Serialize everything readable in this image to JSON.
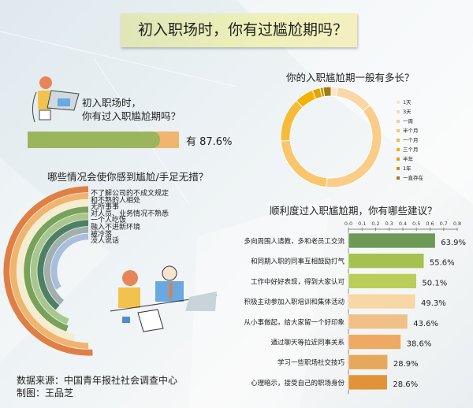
{
  "header": {
    "title": "初入职场时，你有过尴尬期吗？"
  },
  "question1": {
    "line1": "初入职场时，",
    "line2": "你有过入职尴尬期吗？",
    "answer_label": "有 87.6%",
    "value_percent": 87.6,
    "colors": {
      "fill": "#9bb55c",
      "rest": "#f0b56e"
    }
  },
  "chart_data": [
    {
      "type": "pie",
      "variant": "donut",
      "title": "你的入职尴尬期一般有多长？",
      "categories": [
        "1天",
        "3天",
        "一周",
        "半个月",
        "一个月",
        "三个月",
        "半年",
        "1年",
        "一直存在"
      ],
      "values": [
        2,
        12,
        37,
        22,
        14,
        6,
        2.5,
        1,
        2.5
      ],
      "colors": [
        "#fbe6cc",
        "#fad7a6",
        "#f9cd88",
        "#f9c66e",
        "#f7bb3a",
        "#f4b100",
        "#e0a400",
        "#c99400",
        "#a57a10"
      ],
      "legend": "right"
    },
    {
      "type": "bar",
      "variant": "radial",
      "title": "哪些情况会使你感到尴尬/手足无措？",
      "categories": [
        "不了解公司的不成文规定",
        "和不熟的人相处",
        "无所事事",
        "对人员、业务情况不熟悉",
        "一个人吃饭",
        "融入不进新环境",
        "被冷落",
        "没人说话"
      ],
      "values": [
        183,
        180,
        168,
        160,
        158,
        140,
        140,
        120
      ],
      "colors": [
        "#e07f43",
        "#f1b46c",
        "#f6ecce",
        "#78a25a",
        "#a9c68e",
        "#4f8063",
        "#9fb0ad",
        "#a9bedc"
      ]
    },
    {
      "type": "bar",
      "orientation": "horizontal",
      "title": "顺利度过入职尴尬期，你有哪些建议？",
      "categories": [
        "多向周围人请教，多和老员工交流",
        "和同期入职的同事互相鼓励打气",
        "工作中好好表现，得到大家认可",
        "积极主动参加入职培训和集体活动",
        "从小事做起，给大家留一个好印象",
        "通过聊天等拉近同事关系",
        "学习一些职场社交技巧",
        "心理暗示，接受自己的职场身份"
      ],
      "values": [
        0.639,
        0.556,
        0.501,
        0.493,
        0.436,
        0.386,
        0.289,
        0.286
      ],
      "labels": [
        "63.9%",
        "55.6%",
        "50.1%",
        "49.3%",
        "43.6%",
        "38.6%",
        "28.9%",
        "28.6%"
      ],
      "xlim": [
        0,
        0.8
      ],
      "ticks": [
        "0.0",
        "0.1",
        "0.2",
        "0.3",
        "0.4",
        "0.5",
        "0.6",
        "0.7",
        "0.8"
      ],
      "colors": [
        "#6e9a58",
        "#a5c24e",
        "#b9cd58",
        "#f6d7a5",
        "#efc088",
        "#eeaa63",
        "#e6a85c",
        "#e29238"
      ]
    }
  ],
  "footer": {
    "source": "数据来源：中国青年报社社会调查中心",
    "author": "制图：王品芝"
  }
}
